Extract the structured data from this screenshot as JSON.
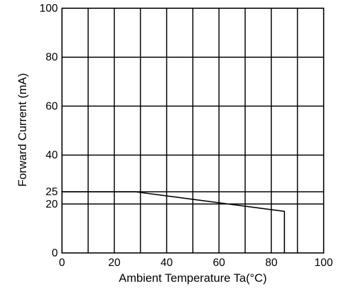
{
  "chart_data": {
    "type": "line",
    "title": "",
    "xlabel": "Ambient Temperature Ta(°C)",
    "ylabel": "Forward Current  (mA)",
    "xlim": [
      0,
      100
    ],
    "ylim": [
      0,
      100
    ],
    "x_ticks": [
      0,
      20,
      40,
      60,
      80,
      100
    ],
    "y_ticks": [
      0,
      20,
      25,
      40,
      60,
      80,
      100
    ],
    "x_tick_labels": [
      "0",
      "20",
      "40",
      "60",
      "80",
      "100"
    ],
    "y_tick_labels": [
      "0",
      "20",
      "25",
      "40",
      "60",
      "80",
      "100"
    ],
    "grid": true,
    "x_grid_step": 10,
    "series": [
      {
        "x": [
          0,
          28,
          85,
          85
        ],
        "y": [
          25,
          25,
          17,
          0
        ]
      }
    ]
  }
}
